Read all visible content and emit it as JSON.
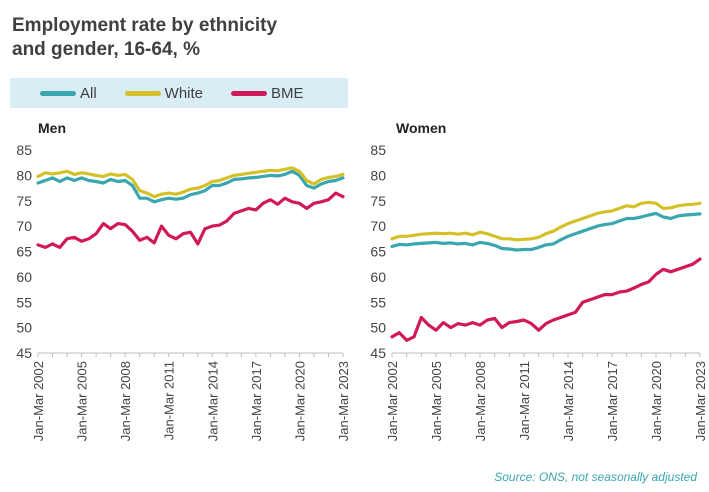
{
  "header": {
    "title_line1": "Employment rate by ethnicity",
    "title_line2": "and gender, 16-64, %"
  },
  "legend": [
    {
      "name": "All",
      "color": "#3aa6b0"
    },
    {
      "name": "White",
      "color": "#d4c12a"
    },
    {
      "name": "BME",
      "color": "#d1185a"
    }
  ],
  "source": "Source: ONS, not seasonally adjusted",
  "chart_data": [
    {
      "type": "line",
      "title": "Men",
      "ylim": [
        45,
        85
      ],
      "yticks": [
        45,
        50,
        55,
        60,
        65,
        70,
        75,
        80,
        85
      ],
      "xlim": [
        2002,
        2023
      ],
      "x_tick_labels": [
        "Jan-Mar 2002",
        "Jan-Mar 2005",
        "Jan-Mar 2008",
        "Jan-Mar 2011",
        "Jan-Mar 2014",
        "Jan-Mar 2017",
        "Jan-Mar 2020",
        "Jan-Mar 2023"
      ],
      "x_tick_years": [
        2002,
        2005,
        2008,
        2011,
        2014,
        2017,
        2020,
        2023
      ],
      "series": [
        {
          "name": "All",
          "color": "#3aa6b0",
          "x": [
            2002,
            2002.5,
            2003,
            2003.5,
            2004,
            2004.5,
            2005,
            2005.5,
            2006,
            2006.5,
            2007,
            2007.5,
            2008,
            2008.5,
            2009,
            2009.5,
            2010,
            2010.5,
            2011,
            2011.5,
            2012,
            2012.5,
            2013,
            2013.5,
            2014,
            2014.5,
            2015,
            2015.5,
            2016,
            2016.5,
            2017,
            2017.5,
            2018,
            2018.5,
            2019,
            2019.5,
            2020,
            2020.5,
            2021,
            2021.5,
            2022,
            2022.5,
            2023
          ],
          "y": [
            78.5,
            79,
            79.5,
            78.8,
            79.5,
            79,
            79.5,
            79,
            78.8,
            78.5,
            79.2,
            78.8,
            79,
            78,
            75.5,
            75.5,
            74.8,
            75.2,
            75.5,
            75.3,
            75.5,
            76.2,
            76.5,
            77,
            78,
            78,
            78.5,
            79.2,
            79.3,
            79.5,
            79.6,
            79.8,
            80,
            79.9,
            80.2,
            80.8,
            80,
            78,
            77.5,
            78.3,
            78.8,
            79,
            79.5
          ]
        },
        {
          "name": "White",
          "color": "#d4c12a",
          "x": [
            2002,
            2002.5,
            2003,
            2003.5,
            2004,
            2004.5,
            2005,
            2005.5,
            2006,
            2006.5,
            2007,
            2007.5,
            2008,
            2008.5,
            2009,
            2009.5,
            2010,
            2010.5,
            2011,
            2011.5,
            2012,
            2012.5,
            2013,
            2013.5,
            2014,
            2014.5,
            2015,
            2015.5,
            2016,
            2016.5,
            2017,
            2017.5,
            2018,
            2018.5,
            2019,
            2019.5,
            2020,
            2020.5,
            2021,
            2021.5,
            2022,
            2022.5,
            2023
          ],
          "y": [
            79.8,
            80.5,
            80.3,
            80.5,
            80.8,
            80.2,
            80.5,
            80.3,
            80,
            79.8,
            80.3,
            80,
            80.2,
            79.2,
            77,
            76.5,
            75.8,
            76.3,
            76.5,
            76.3,
            76.7,
            77.3,
            77.5,
            78,
            78.8,
            79,
            79.5,
            80,
            80.2,
            80.4,
            80.6,
            80.8,
            81,
            80.9,
            81.2,
            81.5,
            80.8,
            79,
            78.3,
            79.2,
            79.6,
            79.8,
            80.2
          ]
        },
        {
          "name": "BME",
          "color": "#d1185a",
          "x": [
            2002,
            2002.5,
            2003,
            2003.5,
            2004,
            2004.5,
            2005,
            2005.5,
            2006,
            2006.5,
            2007,
            2007.5,
            2008,
            2008.5,
            2009,
            2009.5,
            2010,
            2010.5,
            2011,
            2011.5,
            2012,
            2012.5,
            2013,
            2013.5,
            2014,
            2014.5,
            2015,
            2015.5,
            2016,
            2016.5,
            2017,
            2017.5,
            2018,
            2018.5,
            2019,
            2019.5,
            2020,
            2020.5,
            2021,
            2021.5,
            2022,
            2022.5,
            2023
          ],
          "y": [
            66.3,
            65.8,
            66.5,
            65.8,
            67.5,
            67.8,
            67,
            67.5,
            68.5,
            70.5,
            69.5,
            70.5,
            70.3,
            69,
            67.2,
            67.8,
            66.7,
            70,
            68.2,
            67.5,
            68.5,
            68.8,
            66.5,
            69.5,
            70,
            70.2,
            71,
            72.5,
            73,
            73.5,
            73.2,
            74.5,
            75.2,
            74.3,
            75.5,
            74.8,
            74.5,
            73.5,
            74.5,
            74.8,
            75.2,
            76.5,
            75.8
          ]
        }
      ]
    },
    {
      "type": "line",
      "title": "Women",
      "ylim": [
        45,
        85
      ],
      "yticks": [
        45,
        50,
        55,
        60,
        65,
        70,
        75,
        80,
        85
      ],
      "xlim": [
        2002,
        2023
      ],
      "x_tick_labels": [
        "Jan-Mar 2002",
        "Jan-Mar 2005",
        "Jan-Mar 2008",
        "Jan-Mar 2011",
        "Jan-Mar 2014",
        "Jan-Mar 2017",
        "Jan-Mar 2020",
        "Jan-Mar 2023"
      ],
      "x_tick_years": [
        2002,
        2005,
        2008,
        2011,
        2014,
        2017,
        2020,
        2023
      ],
      "series": [
        {
          "name": "All",
          "color": "#3aa6b0",
          "x": [
            2002,
            2002.5,
            2003,
            2003.5,
            2004,
            2004.5,
            2005,
            2005.5,
            2006,
            2006.5,
            2007,
            2007.5,
            2008,
            2008.5,
            2009,
            2009.5,
            2010,
            2010.5,
            2011,
            2011.5,
            2012,
            2012.5,
            2013,
            2013.5,
            2014,
            2014.5,
            2015,
            2015.5,
            2016,
            2016.5,
            2017,
            2017.5,
            2018,
            2018.5,
            2019,
            2019.5,
            2020,
            2020.5,
            2021,
            2021.5,
            2022,
            2022.5,
            2023
          ],
          "y": [
            66,
            66.4,
            66.3,
            66.5,
            66.6,
            66.7,
            66.8,
            66.6,
            66.7,
            66.5,
            66.6,
            66.3,
            66.8,
            66.6,
            66.2,
            65.6,
            65.5,
            65.3,
            65.4,
            65.4,
            65.8,
            66.3,
            66.5,
            67.3,
            68,
            68.5,
            69,
            69.5,
            70,
            70.3,
            70.5,
            71,
            71.5,
            71.5,
            71.8,
            72.2,
            72.5,
            71.8,
            71.5,
            72,
            72.2,
            72.3,
            72.4
          ]
        },
        {
          "name": "White",
          "color": "#d4c12a",
          "x": [
            2002,
            2002.5,
            2003,
            2003.5,
            2004,
            2004.5,
            2005,
            2005.5,
            2006,
            2006.5,
            2007,
            2007.5,
            2008,
            2008.5,
            2009,
            2009.5,
            2010,
            2010.5,
            2011,
            2011.5,
            2012,
            2012.5,
            2013,
            2013.5,
            2014,
            2014.5,
            2015,
            2015.5,
            2016,
            2016.5,
            2017,
            2017.5,
            2018,
            2018.5,
            2019,
            2019.5,
            2020,
            2020.5,
            2021,
            2021.5,
            2022,
            2022.5,
            2023
          ],
          "y": [
            67.5,
            68,
            68,
            68.2,
            68.4,
            68.5,
            68.6,
            68.5,
            68.6,
            68.4,
            68.6,
            68.3,
            68.8,
            68.5,
            68,
            67.5,
            67.5,
            67.3,
            67.4,
            67.5,
            67.8,
            68.5,
            69,
            69.8,
            70.5,
            71,
            71.5,
            72,
            72.5,
            72.8,
            73,
            73.5,
            74,
            73.8,
            74.5,
            74.7,
            74.5,
            73.5,
            73.6,
            74,
            74.2,
            74.3,
            74.5
          ]
        },
        {
          "name": "BME",
          "color": "#d1185a",
          "x": [
            2002,
            2002.5,
            2003,
            2003.5,
            2004,
            2004.5,
            2005,
            2005.5,
            2006,
            2006.5,
            2007,
            2007.5,
            2008,
            2008.5,
            2009,
            2009.5,
            2010,
            2010.5,
            2011,
            2011.5,
            2012,
            2012.5,
            2013,
            2013.5,
            2014,
            2014.5,
            2015,
            2015.5,
            2016,
            2016.5,
            2017,
            2017.5,
            2018,
            2018.5,
            2019,
            2019.5,
            2020,
            2020.5,
            2021,
            2021.5,
            2022,
            2022.5,
            2023
          ],
          "y": [
            48.2,
            49,
            47.5,
            48.2,
            52,
            50.5,
            49.5,
            51,
            50,
            50.8,
            50.5,
            51,
            50.5,
            51.5,
            51.8,
            50,
            51,
            51.2,
            51.5,
            50.8,
            49.5,
            50.8,
            51.5,
            52,
            52.5,
            53,
            55,
            55.5,
            56,
            56.5,
            56.5,
            57,
            57.2,
            57.8,
            58.5,
            59,
            60.5,
            61.5,
            61,
            61.5,
            62,
            62.5,
            63.5
          ]
        }
      ]
    }
  ]
}
